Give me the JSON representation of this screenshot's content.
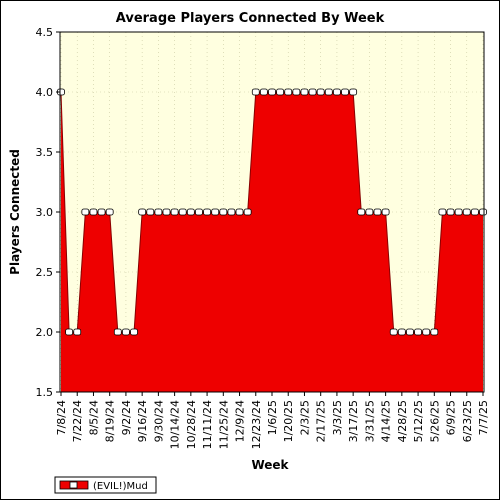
{
  "chart_data": {
    "type": "area",
    "title": "Average Players Connected By Week",
    "xlabel": "Week",
    "ylabel": "Players Connected",
    "ylim": [
      1.5,
      4.5
    ],
    "yticks": [
      "1.5",
      "2.0",
      "2.5",
      "3.0",
      "3.5",
      "4.0",
      "4.5"
    ],
    "xtick_labels": [
      "7/8/24",
      "7/22/24",
      "8/5/24",
      "8/19/24",
      "9/2/24",
      "9/16/24",
      "9/30/24",
      "10/14/24",
      "10/28/24",
      "11/11/24",
      "11/25/24",
      "12/9/24",
      "12/23/24",
      "1/6/25",
      "1/20/25",
      "2/3/25",
      "2/17/25",
      "3/3/25",
      "3/17/25",
      "3/31/25",
      "4/14/25",
      "4/28/25",
      "5/12/25",
      "5/26/25",
      "6/9/25",
      "6/23/25",
      "7/7/25"
    ],
    "x": [
      "7/8/24",
      "7/15/24",
      "7/22/24",
      "7/29/24",
      "8/5/24",
      "8/12/24",
      "8/19/24",
      "8/26/24",
      "9/2/24",
      "9/9/24",
      "9/16/24",
      "9/23/24",
      "9/30/24",
      "10/7/24",
      "10/14/24",
      "10/21/24",
      "10/28/24",
      "11/4/24",
      "11/11/24",
      "11/18/24",
      "11/25/24",
      "12/2/24",
      "12/9/24",
      "12/16/24",
      "12/23/24",
      "12/30/24",
      "1/6/25",
      "1/13/25",
      "1/20/25",
      "1/27/25",
      "2/3/25",
      "2/10/25",
      "2/17/25",
      "2/24/25",
      "3/3/25",
      "3/10/25",
      "3/17/25",
      "3/24/25",
      "3/31/25",
      "4/7/25",
      "4/14/25",
      "4/21/25",
      "4/28/25",
      "5/5/25",
      "5/12/25",
      "5/19/25",
      "5/26/25",
      "6/2/25",
      "6/9/25",
      "6/16/25",
      "6/23/25",
      "6/30/25",
      "7/7/25"
    ],
    "series": [
      {
        "name": "(EVIL!)Mud",
        "color": "#ee0000",
        "values": [
          4,
          2,
          2,
          3,
          3,
          3,
          3,
          2,
          2,
          2,
          3,
          3,
          3,
          3,
          3,
          3,
          3,
          3,
          3,
          3,
          3,
          3,
          3,
          3,
          4,
          4,
          4,
          4,
          4,
          4,
          4,
          4,
          4,
          4,
          4,
          4,
          4,
          3,
          3,
          3,
          3,
          2,
          2,
          2,
          2,
          2,
          2,
          3,
          3,
          3,
          3,
          3,
          3
        ]
      }
    ],
    "grid": true,
    "legend": "bottom-left",
    "plot_background": "#ffffe0"
  }
}
